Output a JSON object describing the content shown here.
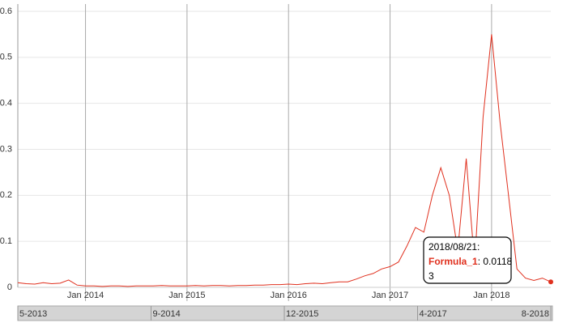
{
  "chart_data": {
    "type": "line",
    "x": [
      "2013-05",
      "2013-06",
      "2013-07",
      "2013-08",
      "2013-09",
      "2013-10",
      "2013-11",
      "2013-12",
      "2014-01",
      "2014-02",
      "2014-03",
      "2014-04",
      "2014-05",
      "2014-06",
      "2014-07",
      "2014-08",
      "2014-09",
      "2014-10",
      "2014-11",
      "2014-12",
      "2015-01",
      "2015-02",
      "2015-03",
      "2015-04",
      "2015-05",
      "2015-06",
      "2015-07",
      "2015-08",
      "2015-09",
      "2015-10",
      "2015-11",
      "2015-12",
      "2016-01",
      "2016-02",
      "2016-03",
      "2016-04",
      "2016-05",
      "2016-06",
      "2016-07",
      "2016-08",
      "2016-09",
      "2016-10",
      "2016-11",
      "2016-12",
      "2017-01",
      "2017-02",
      "2017-03",
      "2017-04",
      "2017-05",
      "2017-06",
      "2017-07",
      "2017-08",
      "2017-09",
      "2017-10",
      "2017-11",
      "2017-12",
      "2018-01",
      "2018-02",
      "2018-03",
      "2018-04",
      "2018-05",
      "2018-06",
      "2018-07",
      "2018-08"
    ],
    "series": [
      {
        "name": "Formula_1",
        "color": "#e0301e",
        "values": [
          0.01,
          0.008,
          0.007,
          0.01,
          0.008,
          0.009,
          0.016,
          0.005,
          0.003,
          0.003,
          0.002,
          0.003,
          0.003,
          0.002,
          0.003,
          0.003,
          0.003,
          0.004,
          0.003,
          0.003,
          0.003,
          0.004,
          0.003,
          0.004,
          0.004,
          0.003,
          0.004,
          0.004,
          0.005,
          0.005,
          0.006,
          0.006,
          0.007,
          0.006,
          0.008,
          0.009,
          0.008,
          0.01,
          0.012,
          0.012,
          0.018,
          0.025,
          0.03,
          0.04,
          0.045,
          0.055,
          0.09,
          0.13,
          0.12,
          0.2,
          0.26,
          0.2,
          0.08,
          0.28,
          0.05,
          0.37,
          0.55,
          0.36,
          0.2,
          0.04,
          0.02,
          0.015,
          0.02,
          0.01183
        ]
      }
    ],
    "xlim": [
      "2013-05",
      "2018-08"
    ],
    "xticks": [
      {
        "value": "2014-01",
        "label": "Jan 2014"
      },
      {
        "value": "2015-01",
        "label": "Jan 2015"
      },
      {
        "value": "2016-01",
        "label": "Jan 2016"
      },
      {
        "value": "2017-01",
        "label": "Jan 2017"
      },
      {
        "value": "2018-01",
        "label": "Jan 2018"
      }
    ],
    "ylim": [
      0,
      0.6
    ],
    "yticks": [
      0,
      0.1,
      0.2,
      0.3,
      0.4,
      0.5,
      0.6
    ],
    "grid": true,
    "tooltip": {
      "date": "2018/08/21:",
      "value_text": ": 0.0118",
      "value_wrap": "3"
    },
    "navigator_labels": [
      "5-2013",
      "9-2014",
      "12-2015",
      "4-2017",
      "8-2018"
    ]
  }
}
